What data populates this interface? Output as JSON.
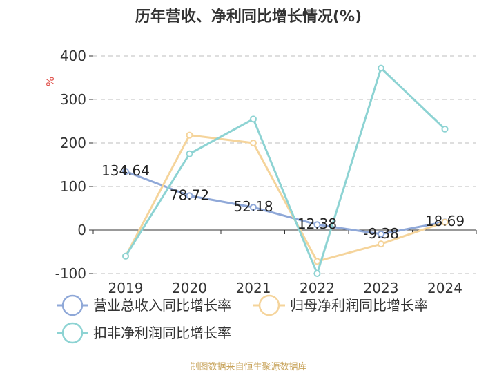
{
  "chart_data": {
    "type": "line",
    "title": "历年营收、净利同比增长情况(%)",
    "ylabel": "%",
    "categories": [
      "2019",
      "2020",
      "2021",
      "2022",
      "2023",
      "2024"
    ],
    "ylim": [
      -100,
      400
    ],
    "yticks": [
      -100,
      0,
      100,
      200,
      300,
      400
    ],
    "grid": "horizontal dashed",
    "legend_position": "bottom-left",
    "series": [
      {
        "name": "营业总收入同比增长率",
        "color": "#8fa8d8",
        "values": [
          134.64,
          78.72,
          52.18,
          12.38,
          -9.38,
          18.69
        ],
        "labels": [
          "134.64",
          "78.72",
          "52.18",
          "12.38",
          "-9.38",
          "18.69"
        ]
      },
      {
        "name": "归母净利润同比增长率",
        "color": "#f5d49b",
        "values": [
          -60,
          218,
          200,
          -72,
          -32,
          18
        ]
      },
      {
        "name": "扣非净利润同比增长率",
        "color": "#8dd3d3",
        "values": [
          -60,
          175,
          255,
          -100,
          372,
          232
        ]
      }
    ]
  },
  "source": "制图数据来自恒生聚源数据库"
}
